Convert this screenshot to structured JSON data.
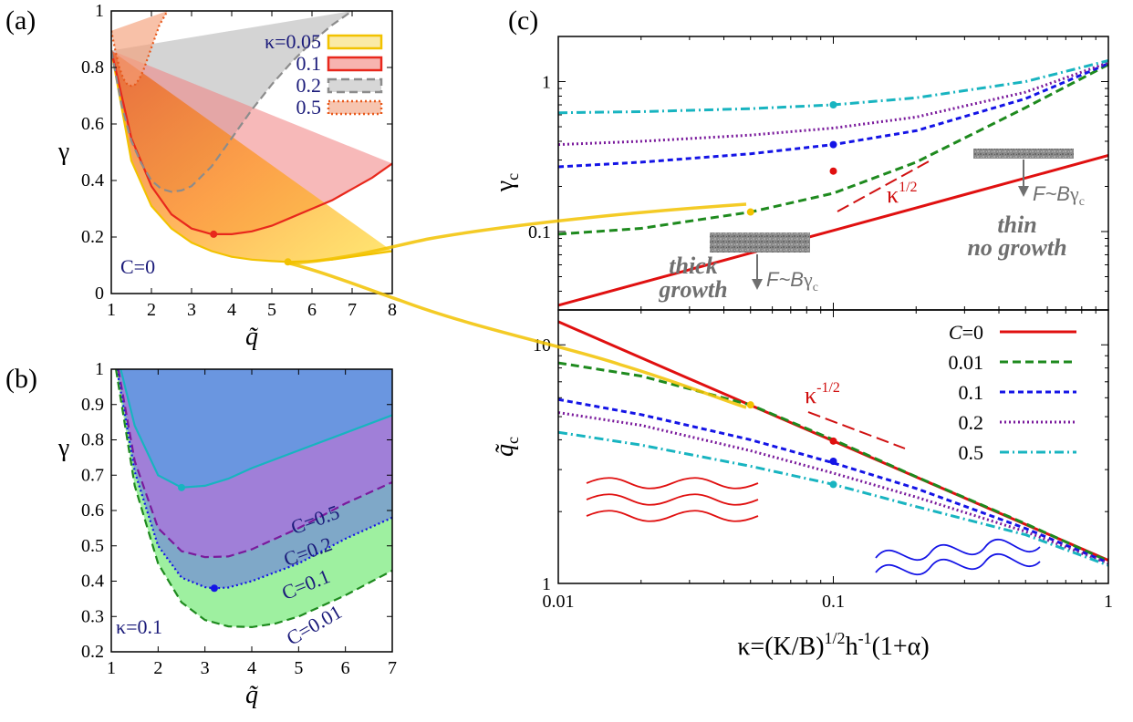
{
  "colors": {
    "k005": "#f2c200",
    "k01": "#e8281c",
    "k02": "#8c8c8c",
    "k05": "#e8591c",
    "c0": "#e01010",
    "c001": "#1e8a1e",
    "c01": "#1414e6",
    "c02": "#7a1a9c",
    "c05": "#18b4c0",
    "legend_text": "#1b1b7a",
    "annot_gray": "#6f6f6f",
    "annot_red": "#d01010"
  },
  "panel_labels": {
    "a": "(a)",
    "b": "(b)",
    "c": "(c)"
  },
  "chart_data": [
    {
      "id": "a",
      "type": "line",
      "xlabel": "q̃",
      "ylabel": "γ",
      "xlim": [
        1,
        8
      ],
      "ylim": [
        0,
        1
      ],
      "xticks": [
        "1",
        "2",
        "3",
        "4",
        "5",
        "6",
        "7",
        "8"
      ],
      "yticks": [
        "0",
        "0.2",
        "0.4",
        "0.6",
        "0.8",
        "1"
      ],
      "annotation": "C=0",
      "legend_title_prefix": "κ=",
      "legend_position": "top-right",
      "series": [
        {
          "name": "0.05",
          "color_key": "k005",
          "dash": "solid",
          "x": [
            1,
            1.5,
            2,
            2.5,
            3,
            3.5,
            4,
            4.5,
            5,
            5.4,
            6,
            6.5,
            7,
            7.5,
            8
          ],
          "y": [
            0.86,
            0.47,
            0.31,
            0.23,
            0.18,
            0.15,
            0.13,
            0.12,
            0.115,
            0.112,
            0.115,
            0.12,
            0.13,
            0.14,
            0.15
          ]
        },
        {
          "name": "0.1",
          "color_key": "k01",
          "dash": "solid",
          "x": [
            1,
            1.5,
            2,
            2.5,
            3,
            3.5,
            4,
            4.5,
            5,
            5.5,
            6,
            6.5,
            7,
            7.5,
            8
          ],
          "y": [
            0.86,
            0.55,
            0.38,
            0.28,
            0.23,
            0.21,
            0.21,
            0.22,
            0.24,
            0.27,
            0.3,
            0.33,
            0.37,
            0.41,
            0.46
          ]
        },
        {
          "name": "0.2",
          "color_key": "k02",
          "dash": "dashed",
          "x": [
            1,
            1.25,
            1.5,
            1.75,
            2,
            2.25,
            2.5,
            2.75,
            3,
            3.5,
            4,
            4.5,
            5,
            5.5,
            6,
            6.5,
            7
          ],
          "y": [
            0.86,
            0.67,
            0.54,
            0.46,
            0.4,
            0.37,
            0.36,
            0.365,
            0.38,
            0.45,
            0.55,
            0.65,
            0.74,
            0.82,
            0.89,
            0.95,
            1.0
          ]
        },
        {
          "name": "0.5",
          "color_key": "k05",
          "dash": "dotted",
          "x": [
            1,
            1.1,
            1.2,
            1.3,
            1.4,
            1.5,
            1.6,
            1.7,
            1.8,
            1.9,
            2.0,
            2.2,
            2.4
          ],
          "y": [
            0.93,
            0.86,
            0.8,
            0.76,
            0.74,
            0.735,
            0.74,
            0.76,
            0.79,
            0.83,
            0.87,
            0.95,
            1.0
          ]
        }
      ],
      "markers": [
        {
          "x": 3.55,
          "y": 0.21,
          "color_key": "k01"
        },
        {
          "x": 5.4,
          "y": 0.112,
          "color_key": "k005"
        }
      ]
    },
    {
      "id": "b",
      "type": "area",
      "xlabel": "q̃",
      "ylabel": "γ",
      "xlim": [
        1,
        7
      ],
      "ylim": [
        0.2,
        1
      ],
      "xticks": [
        "1",
        "2",
        "3",
        "4",
        "5",
        "6",
        "7"
      ],
      "yticks": [
        "0.2",
        "0.3",
        "0.4",
        "0.5",
        "0.6",
        "0.7",
        "0.8",
        "0.9",
        "1"
      ],
      "annotation": "κ=0.1",
      "series": [
        {
          "name": "C=0.5",
          "color_key": "c05",
          "dash": "solid",
          "x": [
            1.2,
            1.5,
            2,
            2.5,
            3,
            3.5,
            4,
            5,
            6,
            7
          ],
          "y": [
            1.0,
            0.84,
            0.7,
            0.665,
            0.67,
            0.69,
            0.72,
            0.77,
            0.82,
            0.87
          ]
        },
        {
          "name": "C=0.2",
          "color_key": "c02",
          "dash": "dashed",
          "x": [
            1.15,
            1.5,
            2,
            2.5,
            3,
            3.5,
            4,
            5,
            6,
            7
          ],
          "y": [
            1.0,
            0.74,
            0.55,
            0.485,
            0.468,
            0.47,
            0.49,
            0.55,
            0.62,
            0.68
          ]
        },
        {
          "name": "C=0.1",
          "color_key": "c01",
          "dash": "dotted",
          "x": [
            1.12,
            1.5,
            2,
            2.5,
            3,
            3.2,
            3.5,
            4,
            5,
            6,
            7
          ],
          "y": [
            1.0,
            0.71,
            0.5,
            0.41,
            0.383,
            0.38,
            0.382,
            0.4,
            0.45,
            0.52,
            0.58
          ]
        },
        {
          "name": "C=0.01",
          "color_key": "c001",
          "dash": "dashed",
          "x": [
            1.1,
            1.5,
            2,
            2.5,
            3,
            3.5,
            4,
            4.5,
            5,
            6,
            7
          ],
          "y": [
            1.0,
            0.67,
            0.45,
            0.34,
            0.29,
            0.272,
            0.27,
            0.28,
            0.3,
            0.36,
            0.43
          ]
        }
      ],
      "markers": [
        {
          "x": 2.5,
          "y": 0.665,
          "color_key": "c05"
        },
        {
          "x": 3.2,
          "y": 0.38,
          "color_key": "c01"
        }
      ]
    },
    {
      "id": "c_top",
      "type": "line",
      "scale": "log-log",
      "ylabel": "γc",
      "ylabel_base": "γ",
      "ylabel_sub": "c",
      "xlim": [
        0.01,
        1
      ],
      "ylim": [
        0.03,
        2
      ],
      "yticks": [
        "0.1",
        "1"
      ],
      "series": [
        {
          "name": "C=0",
          "color_key": "c0",
          "dash": "solid",
          "x": [
            0.01,
            0.03,
            0.1,
            0.3,
            1
          ],
          "y": [
            0.0322,
            0.0557,
            0.1017,
            0.1762,
            0.3217
          ]
        },
        {
          "name": "0.01",
          "color_key": "c001",
          "dash": "dashed",
          "x": [
            0.01,
            0.02,
            0.05,
            0.1,
            0.2,
            0.5,
            1
          ],
          "y": [
            0.096,
            0.105,
            0.135,
            0.18,
            0.29,
            0.67,
            1.3
          ]
        },
        {
          "name": "0.1",
          "color_key": "c01",
          "dash": "shortdash",
          "x": [
            0.01,
            0.02,
            0.05,
            0.1,
            0.2,
            0.5,
            1
          ],
          "y": [
            0.27,
            0.29,
            0.33,
            0.38,
            0.47,
            0.77,
            1.32
          ]
        },
        {
          "name": "0.2",
          "color_key": "c02",
          "dash": "dotted",
          "x": [
            0.01,
            0.02,
            0.05,
            0.1,
            0.2,
            0.5,
            1
          ],
          "y": [
            0.38,
            0.4,
            0.44,
            0.49,
            0.58,
            0.85,
            1.34
          ]
        },
        {
          "name": "0.5",
          "color_key": "c05",
          "dash": "dashdot",
          "x": [
            0.01,
            0.02,
            0.05,
            0.1,
            0.2,
            0.5,
            1
          ],
          "y": [
            0.62,
            0.63,
            0.66,
            0.7,
            0.78,
            1.0,
            1.38
          ]
        }
      ],
      "markers": [
        {
          "x": 0.05,
          "y": 0.135,
          "color_key": "k005"
        },
        {
          "x": 0.1,
          "y": 0.253,
          "color_key": "c0"
        },
        {
          "x": 0.1,
          "y": 0.38,
          "color_key": "c01"
        },
        {
          "x": 0.1,
          "y": 0.7,
          "color_key": "c05"
        }
      ],
      "annotations": {
        "slope": "κ1/2",
        "slope_base": "κ",
        "slope_exp": "1/2",
        "thick_1": "thick",
        "thick_2": "growth",
        "thin_1": "thin",
        "thin_2": "no growth",
        "force_left": "F~Bγc",
        "force_right": "F~Bγc",
        "force_prefix": "F~B",
        "force_greek": "γ",
        "force_sub": "c"
      }
    },
    {
      "id": "c_bottom",
      "type": "line",
      "scale": "log-log",
      "xlabel": "κ=(K/B)1/2h-1(1+α)",
      "xlabel_parts": [
        "κ=(K/B)",
        "1/2",
        "h",
        "-1",
        "(1+α)"
      ],
      "ylabel": "q̃c",
      "ylabel_base": "q̃",
      "ylabel_sub": "c",
      "xlim": [
        0.01,
        1
      ],
      "ylim": [
        1,
        14
      ],
      "xticks": [
        "0.01",
        "0.1",
        "1"
      ],
      "yticks": [
        "1",
        "10"
      ],
      "legend_position": "top-right",
      "series": [
        {
          "name": "C=0",
          "color_key": "c0",
          "dash": "solid",
          "x": [
            0.01,
            0.03,
            0.1,
            0.3,
            1
          ],
          "y": [
            12.5,
            7.2,
            3.95,
            2.28,
            1.25
          ]
        },
        {
          "name": "0.01",
          "color_key": "c001",
          "dash": "dashed",
          "x": [
            0.01,
            0.02,
            0.05,
            0.1,
            0.2,
            0.5,
            1
          ],
          "y": [
            8.4,
            7.4,
            5.6,
            4.0,
            2.8,
            1.78,
            1.24
          ]
        },
        {
          "name": "0.1",
          "color_key": "c01",
          "dash": "shortdash",
          "x": [
            0.01,
            0.02,
            0.05,
            0.1,
            0.2,
            0.5,
            1
          ],
          "y": [
            5.9,
            5.1,
            4.0,
            3.2,
            2.5,
            1.7,
            1.22
          ]
        },
        {
          "name": "0.2",
          "color_key": "c02",
          "dash": "dotted",
          "x": [
            0.01,
            0.02,
            0.05,
            0.1,
            0.2,
            0.5,
            1
          ],
          "y": [
            5.2,
            4.6,
            3.6,
            2.9,
            2.3,
            1.65,
            1.21
          ]
        },
        {
          "name": "0.5",
          "color_key": "c05",
          "dash": "dashdot",
          "x": [
            0.01,
            0.02,
            0.05,
            0.1,
            0.2,
            0.5,
            1
          ],
          "y": [
            4.3,
            3.8,
            3.1,
            2.6,
            2.1,
            1.6,
            1.19
          ]
        }
      ],
      "markers": [
        {
          "x": 0.05,
          "y": 5.6,
          "color_key": "k005"
        },
        {
          "x": 0.1,
          "y": 3.95,
          "color_key": "c0"
        },
        {
          "x": 0.1,
          "y": 3.25,
          "color_key": "c01"
        },
        {
          "x": 0.1,
          "y": 2.6,
          "color_key": "c05"
        }
      ],
      "annotations": {
        "slope": "κ-1/2",
        "slope_base": "κ",
        "slope_exp": "-1/2"
      }
    }
  ]
}
